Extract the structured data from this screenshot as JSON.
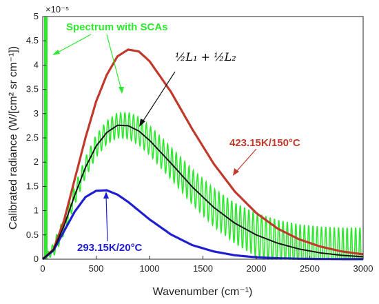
{
  "chart_data": {
    "type": "line",
    "xlabel": "Wavenumber (cm⁻¹)",
    "ylabel": "Calibrated radiance (W/[cm² sr cm⁻¹])",
    "xlim": [
      0,
      3000
    ],
    "ylim": [
      0,
      5e-05
    ],
    "y_exponent_label": "×10⁻⁵",
    "x_ticks": [
      "0",
      "500",
      "1000",
      "1500",
      "2000",
      "2500",
      "3000"
    ],
    "y_ticks": [
      "0",
      "0.5",
      "1",
      "1.5",
      "2",
      "2.5",
      "3",
      "3.5",
      "4",
      "4.5",
      "5"
    ],
    "grid": false,
    "series": [
      {
        "name": "423.15K/150°C",
        "color": "#c0392b",
        "x": [
          0,
          100,
          200,
          300,
          400,
          500,
          600,
          700,
          800,
          900,
          1000,
          1200,
          1400,
          1600,
          1800,
          2000,
          2200,
          2400,
          2600,
          2800,
          3000
        ],
        "y": [
          0,
          2e-06,
          8e-06,
          1.65e-05,
          2.5e-05,
          3.25e-05,
          3.8e-05,
          4.18e-05,
          4.32e-05,
          4.28e-05,
          4.08e-05,
          3.45e-05,
          2.68e-05,
          1.97e-05,
          1.39e-05,
          9.5e-06,
          6.3e-06,
          4.1e-06,
          2.6e-06,
          1.6e-06,
          1e-06
        ]
      },
      {
        "name": "293.15K/20°C",
        "color": "#1f1fcf",
        "x": [
          0,
          100,
          200,
          300,
          400,
          500,
          600,
          700,
          800,
          900,
          1000,
          1200,
          1400,
          1600,
          1800,
          2000,
          2200,
          2400,
          2600,
          2800,
          3000
        ],
        "y": [
          0,
          1.8e-06,
          5.8e-06,
          9.8e-06,
          1.28e-05,
          1.41e-05,
          1.42e-05,
          1.33e-05,
          1.18e-05,
          1e-05,
          8.2e-06,
          5.1e-06,
          2.9e-06,
          1.6e-06,
          8e-07,
          4e-07,
          2e-07,
          1e-07,
          5e-08,
          2e-08,
          1e-08
        ]
      },
      {
        "name": "½L₁ + ½L₂",
        "color": "#111111",
        "x": [
          0,
          100,
          200,
          300,
          400,
          500,
          600,
          700,
          800,
          900,
          1000,
          1200,
          1400,
          1600,
          1800,
          2000,
          2200,
          2400,
          2600,
          2800,
          3000
        ],
        "y": [
          0,
          1.9e-06,
          6.9e-06,
          1.32e-05,
          1.89e-05,
          2.33e-05,
          2.61e-05,
          2.76e-05,
          2.75e-05,
          2.64e-05,
          2.45e-05,
          1.98e-05,
          1.49e-05,
          1.07e-05,
          7.4e-06,
          5e-06,
          3.3e-06,
          2.1e-06,
          1.3e-06,
          8e-07,
          5e-07
        ]
      }
    ],
    "sca_spectrum": {
      "name": "Spectrum with SCAs",
      "color": "#2ee82e",
      "oscillation_period_cm1": 40,
      "base_amplitude": 1.5e-06,
      "amplitude_growth_per_cm1": 1.5e-09
    },
    "annotations": {
      "sca_label": "Spectrum with SCAs",
      "formula_label": "½L₁ + ½L₂",
      "hot_label": "423.15K/150°C",
      "cold_label": "293.15K/20°C"
    }
  }
}
